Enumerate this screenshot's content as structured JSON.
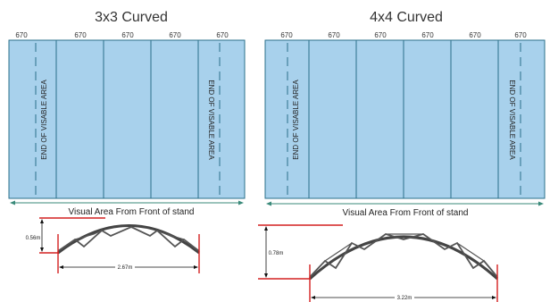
{
  "left": {
    "title": "3x3 Curved",
    "widths": [
      "670",
      "670",
      "670",
      "670",
      "670"
    ],
    "edge_label": "END OF VISABLE AREA",
    "caption": "Visual Area From Front of stand",
    "height_dim": "0.56m",
    "width_dim": "2.67m"
  },
  "right": {
    "title": "4x4 Curved",
    "widths": [
      "670",
      "670",
      "670",
      "670",
      "670",
      "670"
    ],
    "edge_label": "END OF VISABLE AREA",
    "caption": "Visual Area From Front of stand",
    "height_dim": "0.78m",
    "width_dim": "3.22m"
  },
  "colors": {
    "panel": "#a8d1ec",
    "border": "#2a6f8a",
    "arrow": "#3a8a7a",
    "dim_red": "#d42020"
  }
}
